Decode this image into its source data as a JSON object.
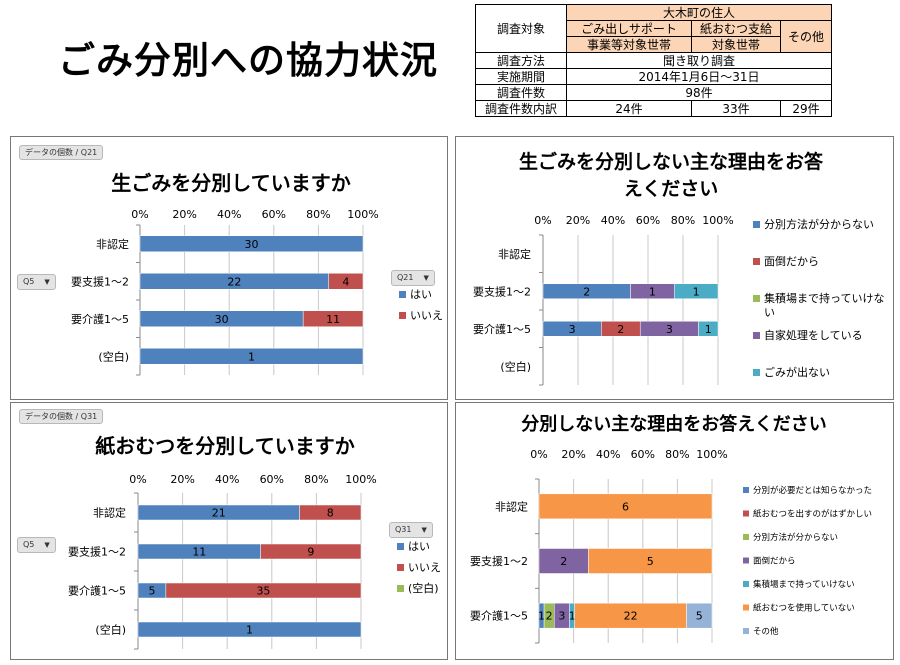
{
  "page": {
    "title": "ごみ分別への協力状況"
  },
  "survey_table": {
    "target_label": "調査対象",
    "target_group": "大木町の住人",
    "col1": [
      "ごみ出しサポート",
      "事業等対象世帯"
    ],
    "col2": [
      "紙おむつ支給",
      "対象世帯"
    ],
    "col3": "その他",
    "method_label": "調査方法",
    "method_value": "聞き取り調査",
    "period_label": "実施期間",
    "period_value": "2014年1月6日〜31日",
    "count_label": "調査件数",
    "count_value": "98件",
    "breakdown_label": "調査件数内訳",
    "breakdown_values": [
      "24件",
      "33件",
      "29件"
    ]
  },
  "pivot": {
    "count_q21": "データの個数 / Q21",
    "count_q31": "データの個数 / Q31",
    "row_field": "Q5",
    "col_field_q21": "Q21",
    "col_field_q31": "Q31"
  },
  "colors": {
    "blue": "#4f81bd",
    "red": "#c0504d",
    "green": "#9bbb59",
    "purple": "#8064a2",
    "teal": "#4bacc6",
    "orange": "#f79646",
    "lightblue": "#95b3d7",
    "table_header": "#fbd5b5"
  },
  "chart_data": [
    {
      "id": "q21",
      "type": "bar",
      "stacked": "percent",
      "orientation": "horizontal",
      "title": "生ごみを分別していますか",
      "categories": [
        "非認定",
        "要支援1〜2",
        "要介護1〜5",
        "(空白)"
      ],
      "series": [
        {
          "name": "はい",
          "color": "#4f81bd",
          "values": [
            30,
            22,
            30,
            1
          ]
        },
        {
          "name": "いいえ",
          "color": "#c0504d",
          "values": [
            0,
            4,
            11,
            0
          ]
        }
      ],
      "x_ticks": [
        "0%",
        "20%",
        "40%",
        "60%",
        "80%",
        "100%"
      ],
      "xlim": [
        0,
        100
      ],
      "legend": "right",
      "grid": true
    },
    {
      "id": "q21-reason",
      "type": "bar",
      "stacked": "percent",
      "orientation": "horizontal",
      "title": [
        "生ごみを分別しない主な理由をお答",
        "えください"
      ],
      "categories": [
        "非認定",
        "要支援1〜2",
        "要介護1〜5",
        "(空白)"
      ],
      "series": [
        {
          "name": "分別方法が分からない",
          "color": "#4f81bd",
          "values": [
            0,
            2,
            3,
            0
          ]
        },
        {
          "name": "面倒だから",
          "color": "#c0504d",
          "values": [
            0,
            0,
            2,
            0
          ]
        },
        {
          "name": [
            "集積場まで持っていけな",
            "い"
          ],
          "color": "#9bbb59",
          "values": [
            0,
            0,
            0,
            0
          ]
        },
        {
          "name": "自家処理をしている",
          "color": "#8064a2",
          "values": [
            0,
            1,
            3,
            0
          ]
        },
        {
          "name": "ごみが出ない",
          "color": "#4bacc6",
          "values": [
            0,
            1,
            1,
            0
          ]
        }
      ],
      "bar_colors_note": "",
      "x_ticks": [
        "0%",
        "20%",
        "40%",
        "60%",
        "80%",
        "100%"
      ],
      "xlim": [
        0,
        100
      ],
      "legend": "right",
      "grid": true
    },
    {
      "id": "q31",
      "type": "bar",
      "stacked": "percent",
      "orientation": "horizontal",
      "title": "紙おむつを分別していますか",
      "categories": [
        "非認定",
        "要支援1〜2",
        "要介護1〜5",
        "(空白)"
      ],
      "series": [
        {
          "name": "はい",
          "color": "#4f81bd",
          "values": [
            21,
            11,
            5,
            1
          ]
        },
        {
          "name": "いいえ",
          "color": "#c0504d",
          "values": [
            8,
            9,
            35,
            0
          ]
        },
        {
          "name": "(空白)",
          "color": "#9bbb59",
          "values": [
            0,
            0,
            0,
            0
          ]
        }
      ],
      "x_ticks": [
        "0%",
        "20%",
        "40%",
        "60%",
        "80%",
        "100%"
      ],
      "xlim": [
        0,
        100
      ],
      "legend": "right",
      "grid": true
    },
    {
      "id": "q31-reason",
      "type": "bar",
      "stacked": "percent",
      "orientation": "horizontal",
      "title": "分別しない主な理由をお答えください",
      "categories": [
        "非認定",
        "要支援1〜2",
        "要介護1〜5"
      ],
      "series": [
        {
          "name": "分別が必要だとは知らなかった",
          "color": "#4f81bd",
          "values": [
            0,
            0,
            1
          ]
        },
        {
          "name": "紙おむつを出すのがはずかしい",
          "color": "#c0504d",
          "values": [
            0,
            0,
            0
          ]
        },
        {
          "name": "分別方法が分からない",
          "color": "#9bbb59",
          "values": [
            0,
            0,
            2
          ]
        },
        {
          "name": "面倒だから",
          "color": "#8064a2",
          "values": [
            0,
            2,
            3
          ]
        },
        {
          "name": "集積場まで持っていけない",
          "color": "#4bacc6",
          "values": [
            0,
            0,
            1
          ]
        },
        {
          "name": "紙おむつを使用していない",
          "color": "#f79646",
          "values": [
            6,
            5,
            22
          ]
        },
        {
          "name": "その他",
          "color": "#95b3d7",
          "values": [
            0,
            0,
            5
          ]
        }
      ],
      "x_ticks": [
        "0%",
        "20%",
        "40%",
        "60%",
        "80%",
        "100%"
      ],
      "xlim": [
        0,
        100
      ],
      "legend": "right",
      "grid": true
    }
  ]
}
